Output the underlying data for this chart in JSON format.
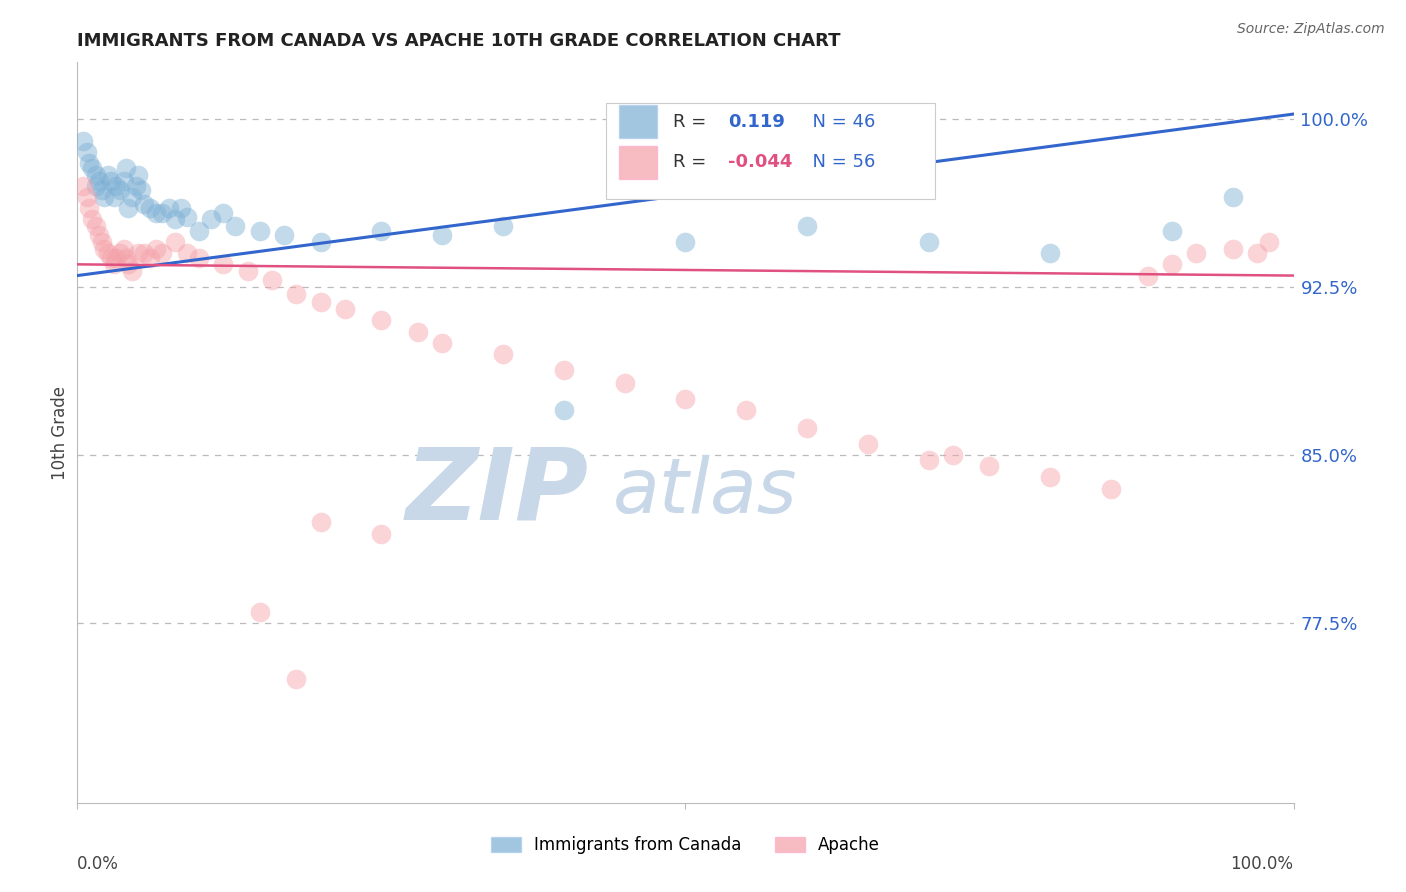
{
  "title": "IMMIGRANTS FROM CANADA VS APACHE 10TH GRADE CORRELATION CHART",
  "source_text": "Source: ZipAtlas.com",
  "ylabel": "10th Grade",
  "legend_label1": "Immigrants from Canada",
  "legend_label2": "Apache",
  "r1": 0.119,
  "n1": 46,
  "r2": -0.044,
  "n2": 56,
  "yticks": [
    0.775,
    0.85,
    0.925,
    1.0
  ],
  "ytick_labels": [
    "77.5%",
    "85.0%",
    "92.5%",
    "100.0%"
  ],
  "ymin": 0.695,
  "ymax": 1.025,
  "xmin": 0.0,
  "xmax": 1.0,
  "blue_color": "#7BAFD4",
  "pink_color": "#F4A0A8",
  "line_blue": "#3366CC",
  "line_pink": "#E05080",
  "watermark_zip_color": "#C8D8E8",
  "watermark_atlas_color": "#C8D8E8",
  "blue_line_y0": 0.93,
  "blue_line_y1": 1.002,
  "pink_line_y0": 0.935,
  "pink_line_y1": 0.93,
  "blue_x": [
    0.005,
    0.008,
    0.01,
    0.012,
    0.015,
    0.015,
    0.018,
    0.02,
    0.022,
    0.025,
    0.028,
    0.03,
    0.032,
    0.035,
    0.038,
    0.04,
    0.042,
    0.045,
    0.048,
    0.05,
    0.052,
    0.055,
    0.06,
    0.065,
    0.07,
    0.075,
    0.08,
    0.085,
    0.09,
    0.1,
    0.11,
    0.12,
    0.13,
    0.15,
    0.17,
    0.2,
    0.25,
    0.3,
    0.35,
    0.4,
    0.5,
    0.6,
    0.7,
    0.8,
    0.9,
    0.95
  ],
  "blue_y": [
    0.99,
    0.985,
    0.98,
    0.978,
    0.975,
    0.97,
    0.972,
    0.968,
    0.965,
    0.975,
    0.972,
    0.965,
    0.97,
    0.968,
    0.972,
    0.978,
    0.96,
    0.965,
    0.97,
    0.975,
    0.968,
    0.962,
    0.96,
    0.958,
    0.958,
    0.96,
    0.955,
    0.96,
    0.956,
    0.95,
    0.955,
    0.958,
    0.952,
    0.95,
    0.948,
    0.945,
    0.95,
    0.948,
    0.952,
    0.87,
    0.945,
    0.952,
    0.945,
    0.94,
    0.95,
    0.965
  ],
  "pink_x": [
    0.005,
    0.008,
    0.01,
    0.012,
    0.015,
    0.018,
    0.02,
    0.022,
    0.025,
    0.028,
    0.03,
    0.032,
    0.035,
    0.038,
    0.04,
    0.042,
    0.045,
    0.05,
    0.055,
    0.06,
    0.065,
    0.07,
    0.08,
    0.09,
    0.1,
    0.12,
    0.14,
    0.16,
    0.18,
    0.2,
    0.22,
    0.25,
    0.28,
    0.3,
    0.35,
    0.4,
    0.45,
    0.5,
    0.55,
    0.6,
    0.65,
    0.7,
    0.72,
    0.75,
    0.8,
    0.85,
    0.88,
    0.9,
    0.92,
    0.95,
    0.97,
    0.98,
    0.2,
    0.25,
    0.15,
    0.18
  ],
  "pink_y": [
    0.97,
    0.965,
    0.96,
    0.955,
    0.952,
    0.948,
    0.945,
    0.942,
    0.94,
    0.938,
    0.935,
    0.938,
    0.94,
    0.942,
    0.938,
    0.935,
    0.932,
    0.94,
    0.94,
    0.938,
    0.942,
    0.94,
    0.945,
    0.94,
    0.938,
    0.935,
    0.932,
    0.928,
    0.922,
    0.918,
    0.915,
    0.91,
    0.905,
    0.9,
    0.895,
    0.888,
    0.882,
    0.875,
    0.87,
    0.862,
    0.855,
    0.848,
    0.85,
    0.845,
    0.84,
    0.835,
    0.93,
    0.935,
    0.94,
    0.942,
    0.94,
    0.945,
    0.82,
    0.815,
    0.78,
    0.75
  ]
}
